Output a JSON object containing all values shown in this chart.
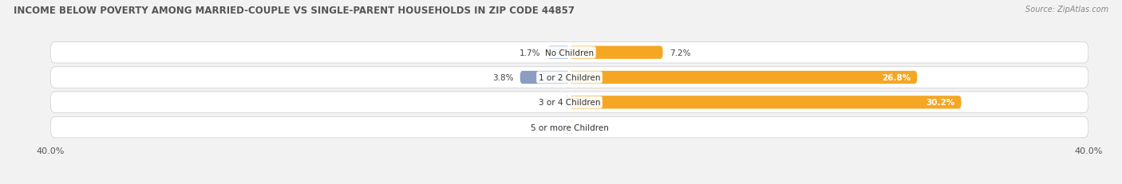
{
  "title": "INCOME BELOW POVERTY AMONG MARRIED-COUPLE VS SINGLE-PARENT HOUSEHOLDS IN ZIP CODE 44857",
  "source": "Source: ZipAtlas.com",
  "categories": [
    "No Children",
    "1 or 2 Children",
    "3 or 4 Children",
    "5 or more Children"
  ],
  "married_values": [
    1.7,
    3.8,
    0.0,
    0.0
  ],
  "single_values": [
    7.2,
    26.8,
    30.2,
    0.0
  ],
  "married_color": "#8b9dc3",
  "married_color_light": "#b8c4dc",
  "single_color": "#f5a623",
  "single_color_light": "#f7c97e",
  "axis_max": 40.0,
  "background_color": "#f2f2f2",
  "row_color": "#e8e8ec",
  "title_fontsize": 8.5,
  "source_fontsize": 7.0,
  "label_fontsize": 7.5,
  "value_fontsize": 7.5,
  "tick_fontsize": 8.0,
  "legend_fontsize": 7.5
}
